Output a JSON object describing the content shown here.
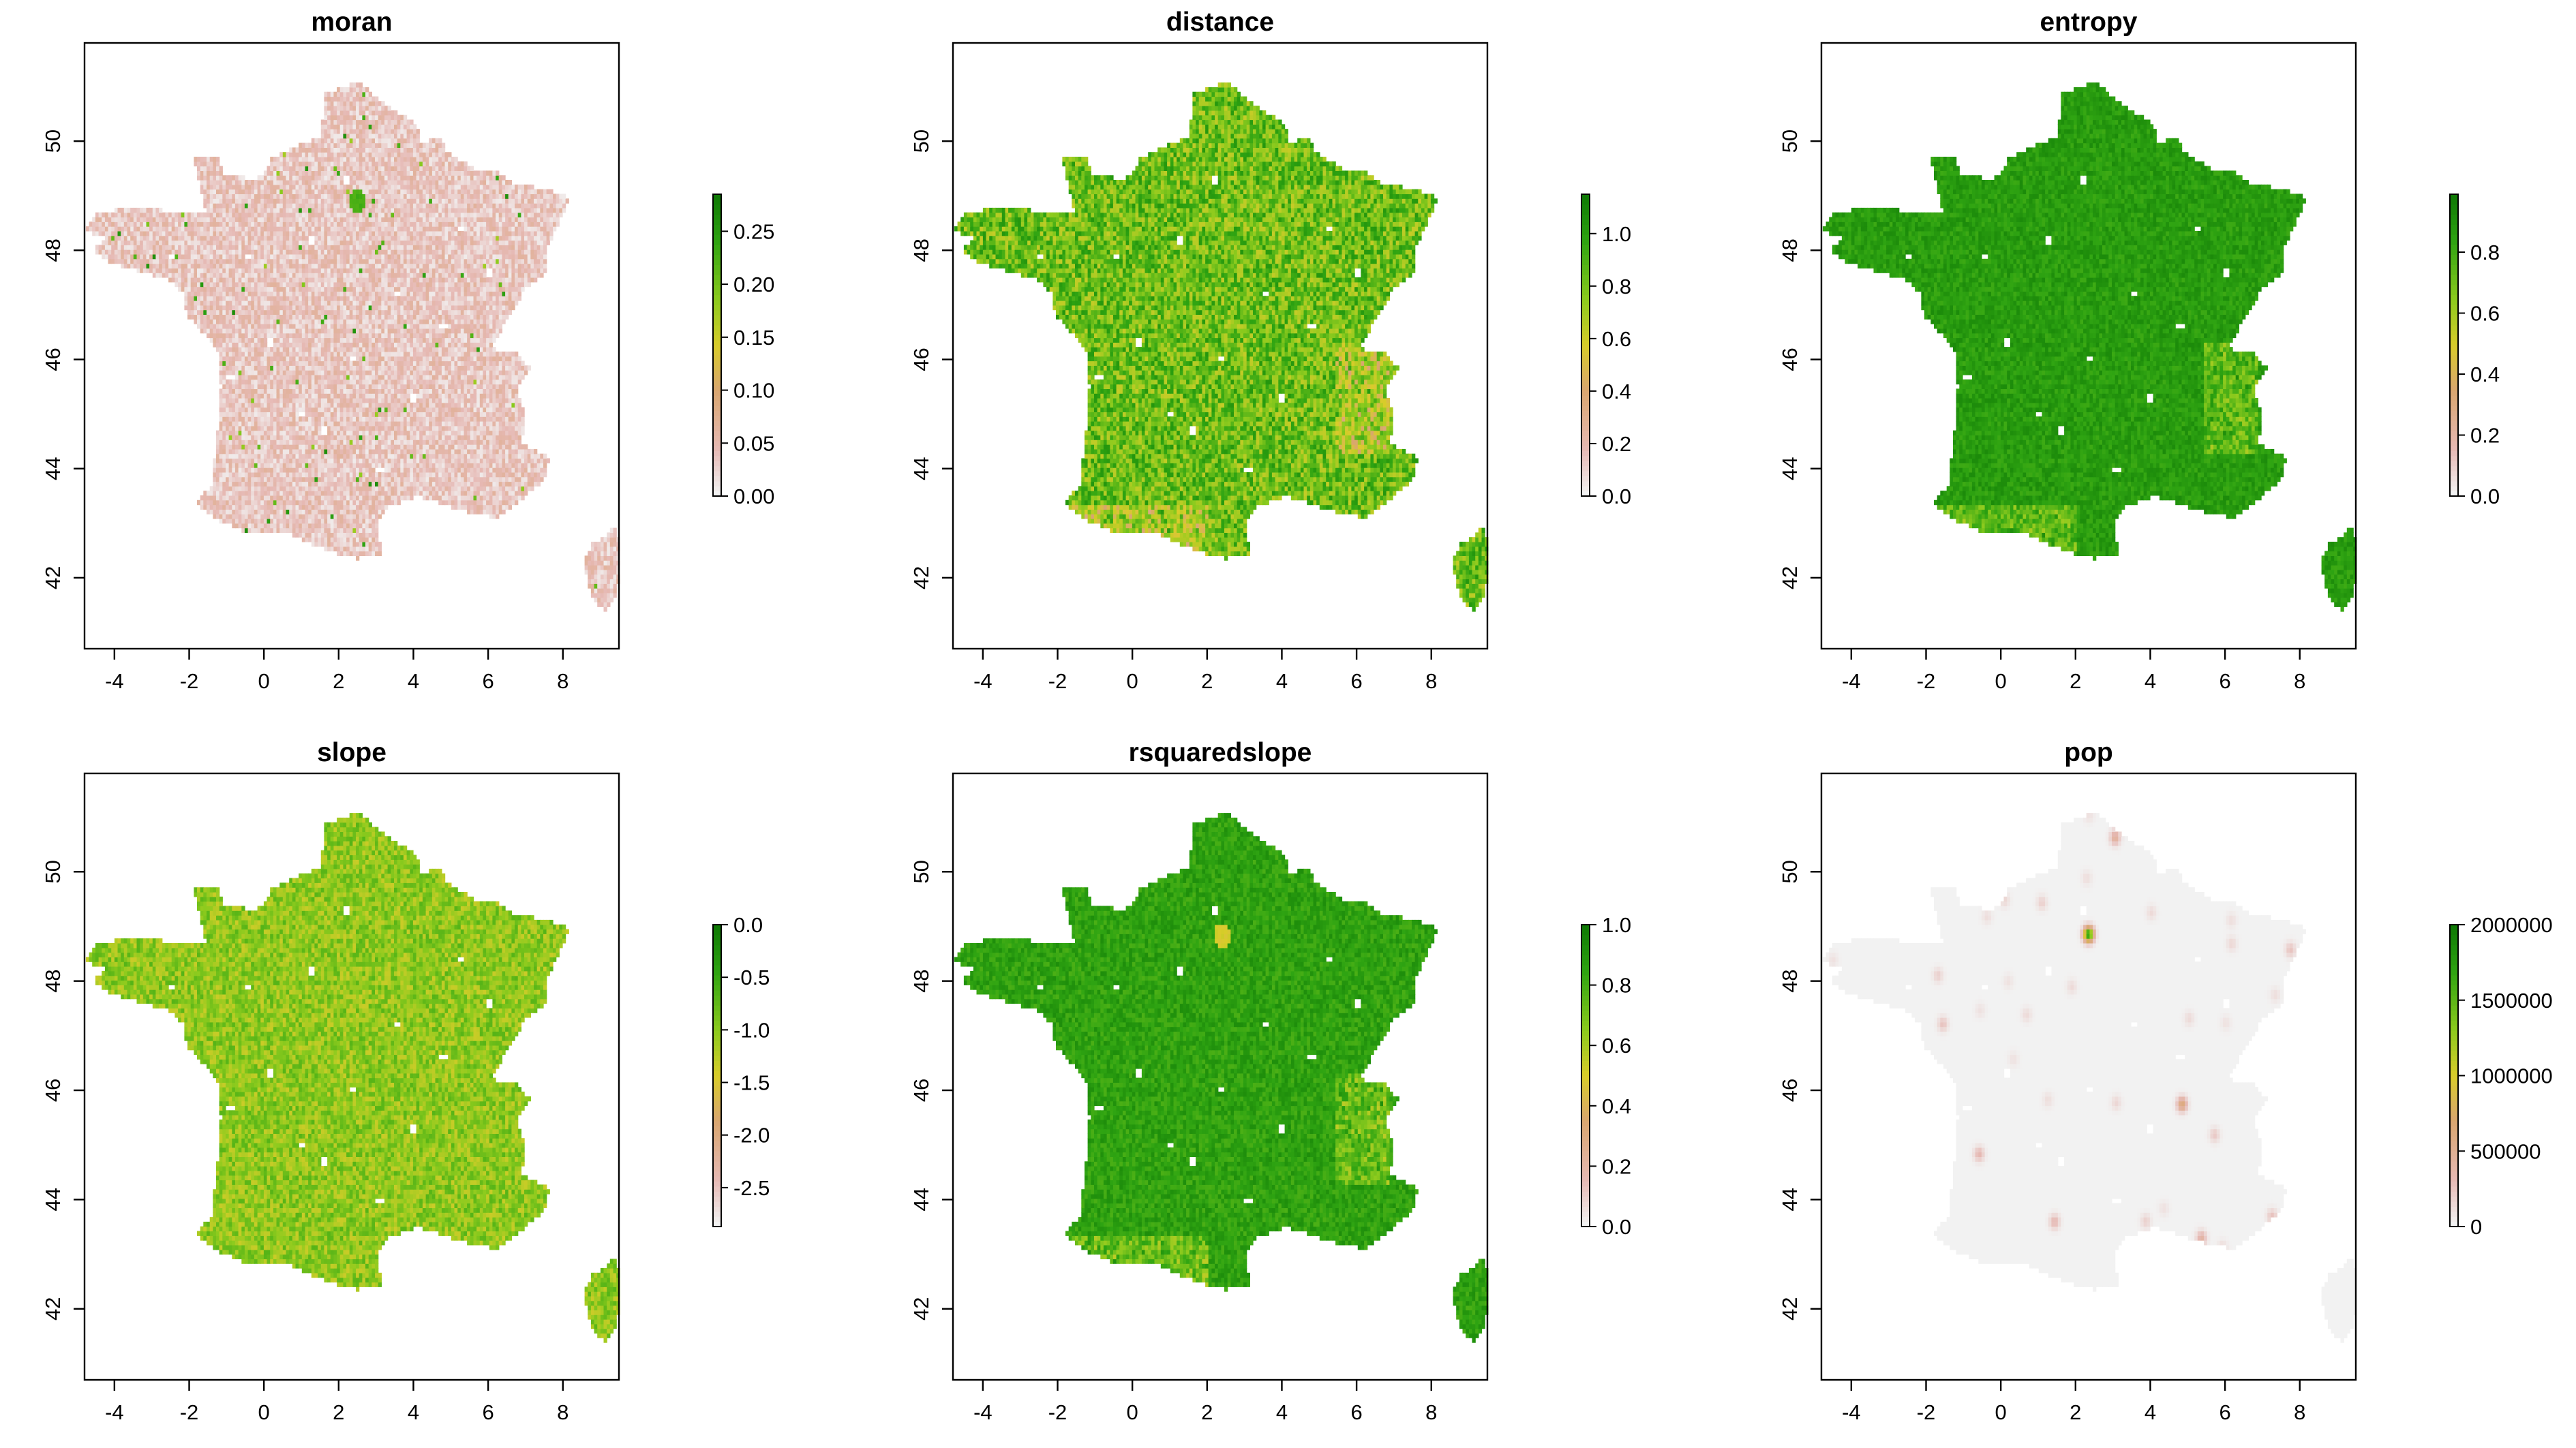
{
  "figure": {
    "x_ticks": [
      "-4",
      "-2",
      "0",
      "2",
      "4",
      "6",
      "8"
    ],
    "x_tick_values": [
      -4,
      -2,
      0,
      2,
      4,
      6,
      8
    ],
    "y_ticks": [
      "42",
      "44",
      "46",
      "48",
      "50"
    ],
    "y_tick_values": [
      42,
      44,
      46,
      48,
      50
    ],
    "xlim": [
      -4.8,
      9.5
    ],
    "ylim": [
      40.7,
      51.8
    ],
    "colors": {
      "background": "#ffffff",
      "frame": "#000000",
      "scale_low": "#f2f2f2",
      "scale_pink": "#e6b9b4",
      "scale_tan": "#d9a66f",
      "scale_yellow": "#d9cc2a",
      "scale_lightgreen": "#8ecb1e",
      "scale_green": "#2fa412",
      "scale_darkgreen": "#0f7a05",
      "nodata": "#ffffff"
    },
    "panels": [
      {
        "title": "moran",
        "legend": {
          "labels": [
            "0.00",
            "0.05",
            "0.10",
            "0.15",
            "0.20",
            "0.25"
          ],
          "values": [
            0,
            0.05,
            0.1,
            0.15,
            0.2,
            0.25
          ],
          "min": 0,
          "max": 0.285
        },
        "fill_mean": 0.12,
        "fill_noise": 0.1,
        "hotspots": [
          {
            "lon": 2.5,
            "lat": 48.9,
            "value": 0.8
          }
        ]
      },
      {
        "title": "distance",
        "legend": {
          "labels": [
            "0.0",
            "0.2",
            "0.4",
            "0.6",
            "0.8",
            "1.0"
          ],
          "values": [
            0,
            0.2,
            0.4,
            0.6,
            0.8,
            1.0
          ],
          "min": 0,
          "max": 1.15
        },
        "fill_mean": 0.72,
        "fill_noise": 0.18,
        "hotspots": []
      },
      {
        "title": "entropy",
        "legend": {
          "labels": [
            "0.0",
            "0.2",
            "0.4",
            "0.6",
            "0.8"
          ],
          "values": [
            0,
            0.2,
            0.4,
            0.6,
            0.8
          ],
          "min": 0,
          "max": 0.99
        },
        "fill_mean": 0.88,
        "fill_noise": 0.06,
        "hotspots": []
      },
      {
        "title": "slope",
        "legend": {
          "labels": [
            "-2.5",
            "-2.0",
            "-1.5",
            "-1.0",
            "-0.5",
            "0.0"
          ],
          "values": [
            -2.5,
            -2.0,
            -1.5,
            -1.0,
            -0.5,
            0.0
          ],
          "min": -2.87,
          "max": 0.0
        },
        "fill_mean": 0.65,
        "fill_noise": 0.12,
        "hotspots": []
      },
      {
        "title": "rsquaredslope",
        "legend": {
          "labels": [
            "0.0",
            "0.2",
            "0.4",
            "0.6",
            "0.8",
            "1.0"
          ],
          "values": [
            0,
            0.2,
            0.4,
            0.6,
            0.8,
            1.0
          ],
          "min": 0,
          "max": 1.0
        },
        "fill_mean": 0.86,
        "fill_noise": 0.07,
        "hotspots": [
          {
            "lon": 2.4,
            "lat": 48.85,
            "value": 0.5
          }
        ]
      },
      {
        "title": "pop",
        "legend": {
          "labels": [
            "0",
            "500000",
            "1000000",
            "1500000",
            "2000000"
          ],
          "values": [
            0,
            500000,
            1000000,
            1500000,
            2000000
          ],
          "min": 0,
          "max": 2000000
        },
        "fill_mean": 0.0,
        "fill_noise": 0.0,
        "hotspots": [
          {
            "lon": 2.35,
            "lat": 48.86,
            "value": 1.0
          },
          {
            "lon": 4.85,
            "lat": 45.75,
            "value": 0.35
          },
          {
            "lon": 5.37,
            "lat": 43.3,
            "value": 0.22
          },
          {
            "lon": 1.44,
            "lat": 43.6,
            "value": 0.18
          },
          {
            "lon": 3.06,
            "lat": 50.63,
            "value": 0.25
          },
          {
            "lon": -0.58,
            "lat": 44.84,
            "value": 0.18
          },
          {
            "lon": -1.55,
            "lat": 47.22,
            "value": 0.14
          },
          {
            "lon": 7.75,
            "lat": 48.58,
            "value": 0.14
          },
          {
            "lon": 7.26,
            "lat": 43.7,
            "value": 0.14
          },
          {
            "lon": 1.1,
            "lat": 49.44,
            "value": 0.1
          },
          {
            "lon": 5.72,
            "lat": 45.19,
            "value": 0.12
          },
          {
            "lon": -1.68,
            "lat": 48.11,
            "value": 0.1
          },
          {
            "lon": 3.88,
            "lat": 43.61,
            "value": 0.1
          },
          {
            "lon": 6.18,
            "lat": 48.69,
            "value": 0.08
          },
          {
            "lon": 3.09,
            "lat": 45.78,
            "value": 0.08
          },
          {
            "lon": 0.69,
            "lat": 47.39,
            "value": 0.07
          },
          {
            "lon": 1.9,
            "lat": 47.9,
            "value": 0.07
          },
          {
            "lon": 5.04,
            "lat": 47.32,
            "value": 0.07
          },
          {
            "lon": 4.03,
            "lat": 49.26,
            "value": 0.07
          },
          {
            "lon": 2.3,
            "lat": 49.89,
            "value": 0.06
          },
          {
            "lon": 1.26,
            "lat": 45.83,
            "value": 0.06
          },
          {
            "lon": -0.37,
            "lat": 49.18,
            "value": 0.06
          },
          {
            "lon": 0.34,
            "lat": 46.58,
            "value": 0.05
          },
          {
            "lon": 6.02,
            "lat": 47.24,
            "value": 0.05
          },
          {
            "lon": 5.93,
            "lat": 43.12,
            "value": 0.08
          },
          {
            "lon": 4.36,
            "lat": 43.84,
            "value": 0.05
          },
          {
            "lon": 7.34,
            "lat": 47.75,
            "value": 0.06
          },
          {
            "lon": 6.17,
            "lat": 49.12,
            "value": 0.06
          },
          {
            "lon": -4.49,
            "lat": 48.39,
            "value": 0.05
          },
          {
            "lon": 2.36,
            "lat": 51.03,
            "value": 0.05
          },
          {
            "lon": 0.1,
            "lat": 49.49,
            "value": 0.08
          },
          {
            "lon": -0.55,
            "lat": 47.47,
            "value": 0.05
          },
          {
            "lon": 0.2,
            "lat": 48.0,
            "value": 0.05
          }
        ]
      }
    ]
  }
}
